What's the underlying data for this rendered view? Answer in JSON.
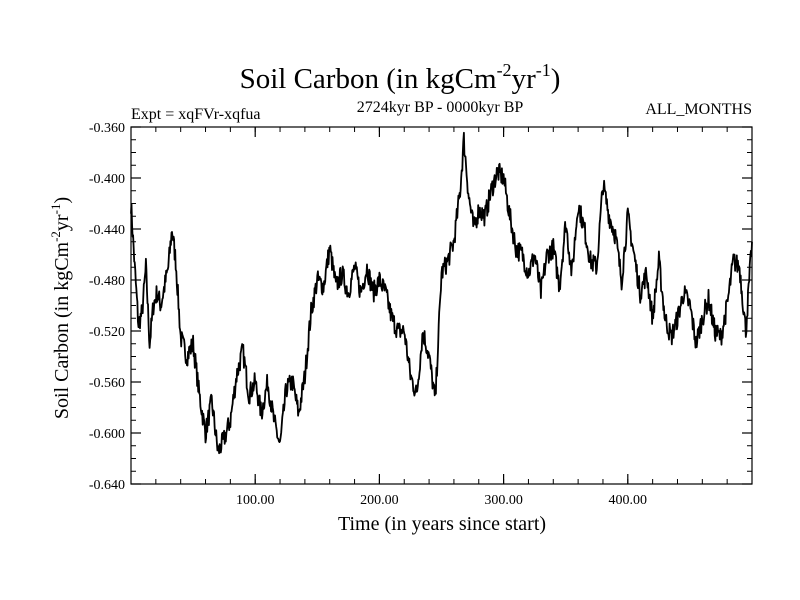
{
  "chart_data": {
    "type": "line",
    "title": "Soil Carbon (in kgCm",
    "title_sup1": "-2",
    "title_mid": "yr",
    "title_sup2": "-1",
    "title_end": ")",
    "subtitle_left": "Expt = xqFVr-xqfua",
    "subtitle_center": "2724kyr BP - 0000kyr BP",
    "subtitle_right": "ALL_MONTHS",
    "xlabel": "Time (in years since start)",
    "ylabel": "Soil Carbon (in kgCm",
    "ylabel_sup1": "-2",
    "ylabel_mid": "yr",
    "ylabel_sup2": "-1",
    "ylabel_end": ")",
    "xlim": [
      0,
      500
    ],
    "ylim": [
      -0.64,
      -0.36
    ],
    "xticks": [
      100,
      200,
      300,
      400
    ],
    "xtick_labels": [
      "100.00",
      "200.00",
      "300.00",
      "400.00"
    ],
    "yticks": [
      -0.36,
      -0.4,
      -0.44,
      -0.48,
      -0.52,
      -0.56,
      -0.6,
      -0.64
    ],
    "ytick_labels": [
      "-0.360",
      "-0.400",
      "-0.440",
      "-0.480",
      "-0.520",
      "-0.560",
      "-0.600",
      "-0.640"
    ],
    "series": [
      {
        "name": "Soil Carbon",
        "color": "#000000",
        "x": [
          0,
          3,
          6,
          9,
          12,
          15,
          18,
          21,
          24,
          27,
          30,
          33,
          36,
          40,
          45,
          50,
          55,
          60,
          65,
          70,
          75,
          80,
          85,
          90,
          95,
          100,
          105,
          110,
          115,
          120,
          125,
          130,
          135,
          140,
          145,
          150,
          155,
          160,
          165,
          170,
          175,
          180,
          185,
          190,
          195,
          200,
          205,
          210,
          215,
          220,
          225,
          230,
          235,
          240,
          245,
          250,
          255,
          260,
          265,
          268,
          272,
          276,
          280,
          285,
          290,
          295,
          300,
          305,
          310,
          315,
          320,
          325,
          330,
          335,
          340,
          345,
          350,
          355,
          360,
          365,
          370,
          375,
          380,
          385,
          390,
          395,
          400,
          405,
          410,
          415,
          420,
          425,
          430,
          435,
          440,
          445,
          450,
          455,
          460,
          465,
          470,
          475,
          480,
          485,
          490,
          495,
          500
        ],
        "y": [
          -0.42,
          -0.47,
          -0.515,
          -0.505,
          -0.47,
          -0.53,
          -0.5,
          -0.49,
          -0.5,
          -0.485,
          -0.47,
          -0.44,
          -0.465,
          -0.525,
          -0.54,
          -0.53,
          -0.57,
          -0.6,
          -0.575,
          -0.615,
          -0.605,
          -0.59,
          -0.555,
          -0.535,
          -0.57,
          -0.56,
          -0.585,
          -0.56,
          -0.59,
          -0.61,
          -0.565,
          -0.56,
          -0.585,
          -0.555,
          -0.505,
          -0.48,
          -0.485,
          -0.455,
          -0.485,
          -0.475,
          -0.49,
          -0.47,
          -0.49,
          -0.47,
          -0.49,
          -0.48,
          -0.49,
          -0.51,
          -0.52,
          -0.52,
          -0.555,
          -0.57,
          -0.52,
          -0.54,
          -0.575,
          -0.475,
          -0.465,
          -0.45,
          -0.41,
          -0.37,
          -0.415,
          -0.44,
          -0.425,
          -0.43,
          -0.41,
          -0.395,
          -0.4,
          -0.43,
          -0.455,
          -0.46,
          -0.475,
          -0.46,
          -0.49,
          -0.46,
          -0.455,
          -0.485,
          -0.435,
          -0.475,
          -0.42,
          -0.44,
          -0.465,
          -0.47,
          -0.405,
          -0.43,
          -0.445,
          -0.48,
          -0.43,
          -0.46,
          -0.49,
          -0.475,
          -0.51,
          -0.465,
          -0.51,
          -0.525,
          -0.51,
          -0.49,
          -0.5,
          -0.53,
          -0.51,
          -0.495,
          -0.52,
          -0.525,
          -0.5,
          -0.465,
          -0.47,
          -0.52,
          -0.45
        ]
      }
    ]
  }
}
